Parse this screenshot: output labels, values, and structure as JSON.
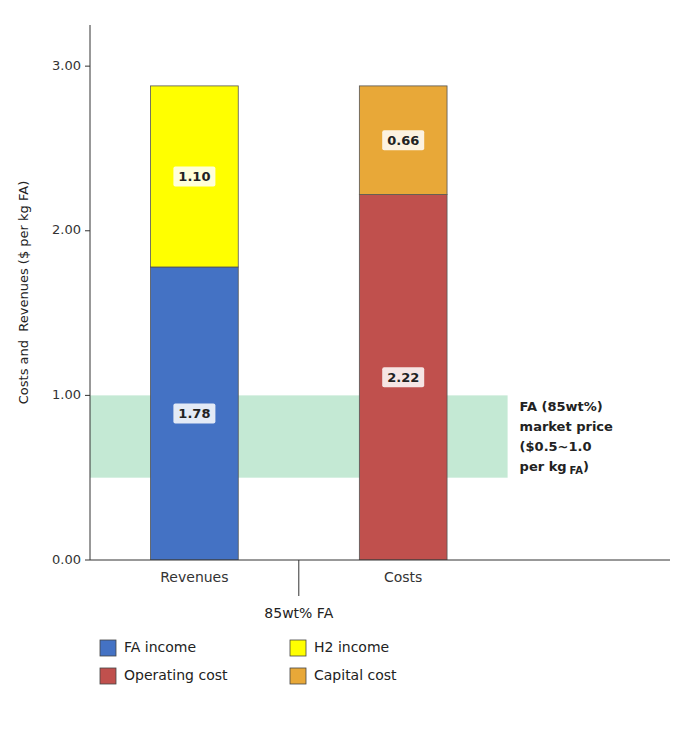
{
  "chart_data": {
    "type": "bar",
    "stacked": true,
    "data_labels": true,
    "grid": false,
    "legend": "bottom",
    "categories": [
      "Revenues",
      "Costs"
    ],
    "xlabel": "85wt% FA",
    "ylabel": "Costs and  Revenues ($ per kg FA)",
    "ylim": [
      0,
      3.25
    ],
    "yticks": [
      {
        "value": 0.0,
        "label": "0.00"
      },
      {
        "value": 1.0,
        "label": "1.00"
      },
      {
        "value": 2.0,
        "label": "2.00"
      },
      {
        "value": 3.0,
        "label": "3.00"
      }
    ],
    "series": [
      {
        "name": "FA income",
        "color": "#4472C4",
        "values": [
          1.78,
          null
        ],
        "value_labels": [
          "1.78",
          null
        ]
      },
      {
        "name": "H2 income",
        "color": "#FFFF00",
        "values": [
          1.1,
          null
        ],
        "value_labels": [
          "1.10",
          null
        ]
      },
      {
        "name": "Operating cost",
        "color": "#C0504D",
        "values": [
          null,
          2.22
        ],
        "value_labels": [
          null,
          "2.22"
        ]
      },
      {
        "name": "Capital cost",
        "color": "#E8A838",
        "values": [
          null,
          0.66
        ],
        "value_labels": [
          null,
          "0.66"
        ]
      }
    ],
    "band": {
      "low": 0.5,
      "high": 1.0,
      "color": "#7DCEA0"
    },
    "annotation": {
      "text": [
        "FA (85wt%)",
        "market price",
        "($0.5~1.0",
        "per kg"
      ],
      "subscript": "FA",
      "suffix": ")"
    }
  }
}
